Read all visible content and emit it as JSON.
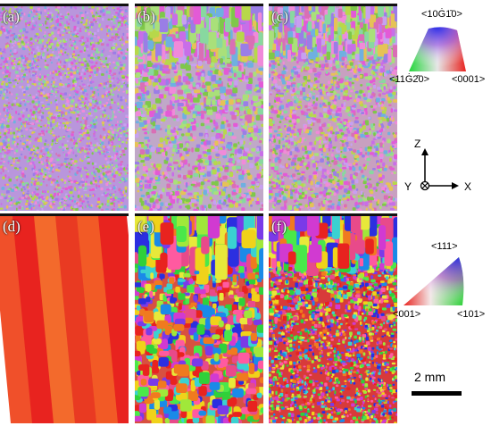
{
  "panels": [
    {
      "label": "(a)",
      "kind": "hcp",
      "style": "fine"
    },
    {
      "label": "(b)",
      "kind": "hcp",
      "style": "graded"
    },
    {
      "label": "(c)",
      "kind": "hcp",
      "style": "graded-fine"
    },
    {
      "label": "(d)",
      "kind": "cubic",
      "style": "columnar"
    },
    {
      "label": "(e)",
      "kind": "cubic",
      "style": "coarse"
    },
    {
      "label": "(f)",
      "kind": "cubic",
      "style": "graded-fine"
    }
  ],
  "hcp_legend": {
    "top": "<10Ġ1̄0>",
    "left": "<11Ġ2̄0>",
    "right": "<0001>"
  },
  "cubic_legend": {
    "top": "<111>",
    "left": "<001>",
    "right": "<101>"
  },
  "axes": {
    "z": "Z",
    "y": "Y",
    "x": "X"
  },
  "scale_bar": {
    "label": "2 mm"
  },
  "colors": {
    "red": "#e8231f",
    "green": "#2fd13a",
    "blue": "#2b2fe0"
  }
}
